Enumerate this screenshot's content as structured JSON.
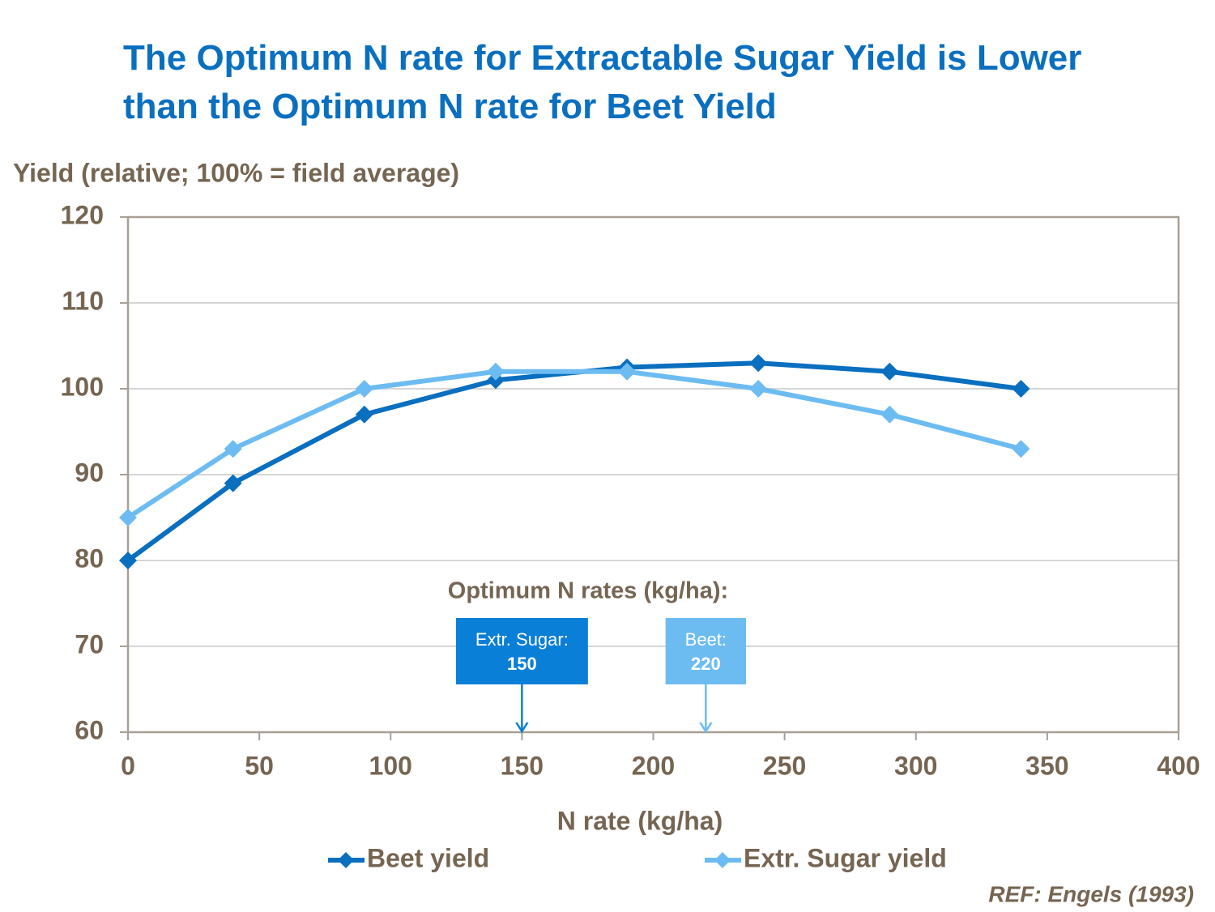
{
  "chart_data": {
    "type": "line",
    "title": "The Optimum N rate for Extractable Sugar Yield is Lower than the Optimum N rate for Beet Yield",
    "y_label": "Yield (relative; 100% = field average)",
    "x_label": "N rate (kg/ha)",
    "x": [
      0,
      40,
      90,
      140,
      190,
      240,
      290,
      340
    ],
    "series": [
      {
        "name": "Beet yield",
        "color": "#0a6fbf",
        "values": [
          80,
          89,
          97,
          101,
          102.5,
          103,
          102,
          100
        ]
      },
      {
        "name": "Extr. Sugar yield",
        "color": "#6cbcf2",
        "values": [
          85,
          93,
          100,
          102,
          102,
          100,
          97,
          93
        ]
      }
    ],
    "xlim": [
      0,
      400
    ],
    "xticks": [
      0,
      50,
      100,
      150,
      200,
      250,
      300,
      350,
      400
    ],
    "ylim": [
      60,
      120
    ],
    "yticks": [
      60,
      70,
      80,
      90,
      100,
      110,
      120
    ],
    "grid": true,
    "annotation_title": "Optimum N rates (kg/ha):",
    "optima": [
      {
        "label": "Extr. Sugar:",
        "value": 150,
        "color": "#0a7fd8"
      },
      {
        "label": "Beet:",
        "value": 220,
        "color": "#6cbcf2"
      }
    ],
    "source": "REF: Engels (1993)"
  }
}
